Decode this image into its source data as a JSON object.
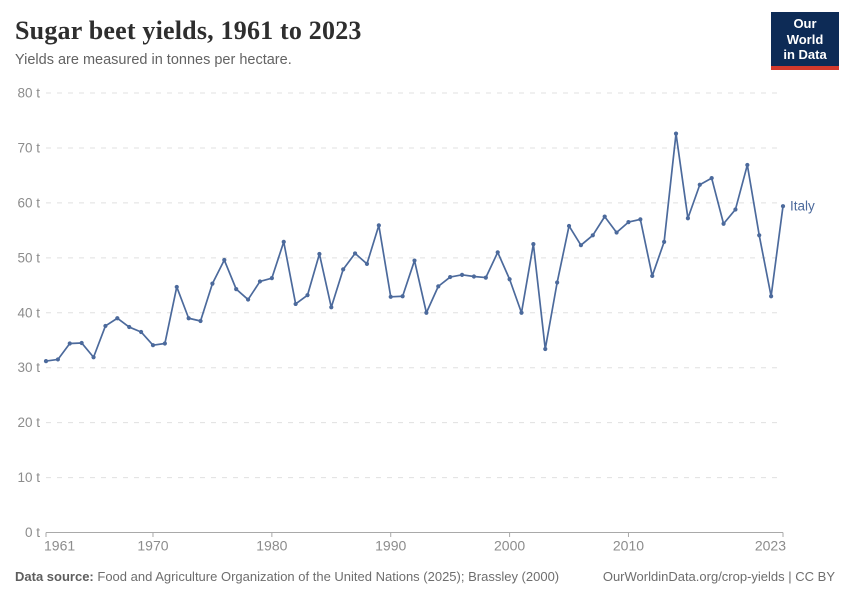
{
  "header": {
    "title": "Sugar beet yields, 1961 to 2023",
    "subtitle": "Yields are measured in tonnes per hectare."
  },
  "logo": {
    "line1": "Our World",
    "line2": "in Data",
    "background_color": "#0d2b56",
    "accent_color": "#d3392c"
  },
  "footer": {
    "source_label": "Data source:",
    "source_text": "Food and Agriculture Organization of the United Nations (2025); Brassley (2000)",
    "right_text": "OurWorldinData.org/crop-yields | CC BY"
  },
  "chart_data": {
    "type": "line",
    "title": "Sugar beet yields, 1961 to 2023",
    "subtitle": "Yields are measured in tonnes per hectare.",
    "xlabel": "",
    "ylabel": "",
    "unit_suffix": " t",
    "xlim": [
      1961,
      2023
    ],
    "ylim": [
      0,
      80
    ],
    "x_ticks": [
      1961,
      1970,
      1980,
      1990,
      2000,
      2010,
      2023
    ],
    "x_tick_labels": [
      "1961",
      "1970",
      "1980",
      "1990",
      "2000",
      "2010",
      "2023"
    ],
    "y_ticks": [
      0,
      10,
      20,
      30,
      40,
      50,
      60,
      70,
      80
    ],
    "y_tick_labels": [
      "0 t",
      "10 t",
      "20 t",
      "30 t",
      "40 t",
      "50 t",
      "60 t",
      "70 t",
      "80 t"
    ],
    "grid": "horizontal-dashed",
    "legend_position": "line-end-label",
    "colors": {
      "line": "#4C6A9C",
      "gridline": "#e0e0e0",
      "axis": "#a9a9a9",
      "tick_label": "#8c8c8c"
    },
    "series": [
      {
        "name": "Italy",
        "color": "#4C6A9C",
        "x": [
          1961,
          1962,
          1963,
          1964,
          1965,
          1966,
          1967,
          1968,
          1969,
          1970,
          1971,
          1972,
          1973,
          1974,
          1975,
          1976,
          1977,
          1978,
          1979,
          1980,
          1981,
          1982,
          1983,
          1984,
          1985,
          1986,
          1987,
          1988,
          1989,
          1990,
          1991,
          1992,
          1993,
          1994,
          1995,
          1996,
          1997,
          1998,
          1999,
          2000,
          2001,
          2002,
          2003,
          2004,
          2005,
          2006,
          2007,
          2008,
          2009,
          2010,
          2011,
          2012,
          2013,
          2014,
          2015,
          2016,
          2017,
          2018,
          2019,
          2020,
          2021,
          2022,
          2023
        ],
        "values": [
          31.2,
          31.5,
          34.4,
          34.5,
          31.9,
          37.6,
          39.0,
          37.4,
          36.5,
          34.1,
          34.4,
          44.7,
          39.0,
          38.5,
          45.3,
          49.6,
          44.3,
          42.4,
          45.7,
          46.3,
          52.9,
          41.6,
          43.2,
          50.7,
          41.0,
          47.9,
          50.8,
          48.9,
          55.9,
          42.9,
          43.0,
          49.5,
          40.0,
          44.8,
          46.5,
          46.9,
          46.6,
          46.4,
          51.0,
          46.1,
          40.0,
          52.5,
          33.4,
          45.5,
          55.8,
          52.3,
          54.1,
          57.5,
          54.6,
          56.5,
          57.0,
          46.7,
          52.9,
          72.6,
          57.2,
          63.3,
          64.5,
          56.2,
          58.8,
          66.9,
          54.1,
          43.0,
          59.4
        ]
      }
    ]
  }
}
